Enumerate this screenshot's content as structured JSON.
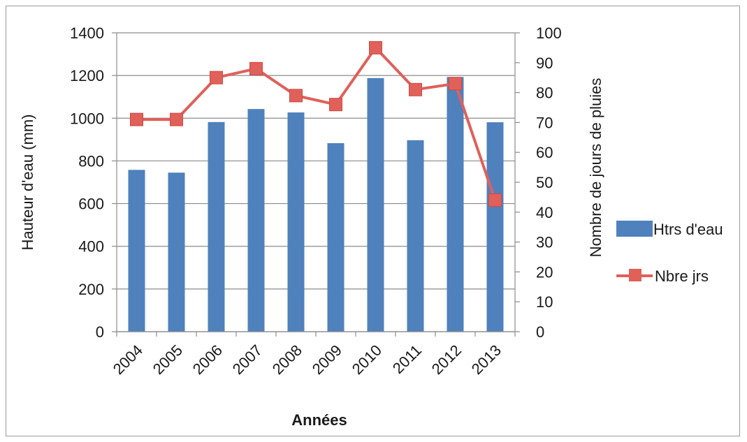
{
  "chart_data": {
    "type": "bar",
    "categories": [
      "2004",
      "2005",
      "2006",
      "2007",
      "2008",
      "2009",
      "2010",
      "2011",
      "2012",
      "2013"
    ],
    "series": [
      {
        "name": "Htrs d'eau",
        "type": "bar",
        "axis": "left",
        "color": "#4f81bd",
        "values": [
          758,
          745,
          982,
          1043,
          1027,
          883,
          1188,
          897,
          1193,
          981
        ]
      },
      {
        "name": "Nbre jrs",
        "type": "line",
        "axis": "right",
        "color": "#e0605a",
        "marker": "square",
        "values": [
          71,
          71,
          85,
          88,
          79,
          76,
          95,
          81,
          83,
          44
        ]
      }
    ],
    "xlabel": "Années",
    "ylabel": "Hauteur d'eau (mm)",
    "y2label": "Nombre de jours de pluies",
    "ylim": [
      0,
      1400
    ],
    "y2lim": [
      0,
      100
    ],
    "yticks": [
      "0",
      "200",
      "400",
      "600",
      "800",
      "1000",
      "1200",
      "1400"
    ],
    "y2ticks": [
      "0",
      "10",
      "20",
      "30",
      "40",
      "50",
      "60",
      "70",
      "80",
      "90",
      "100"
    ],
    "grid": true,
    "legend_position": "right"
  }
}
